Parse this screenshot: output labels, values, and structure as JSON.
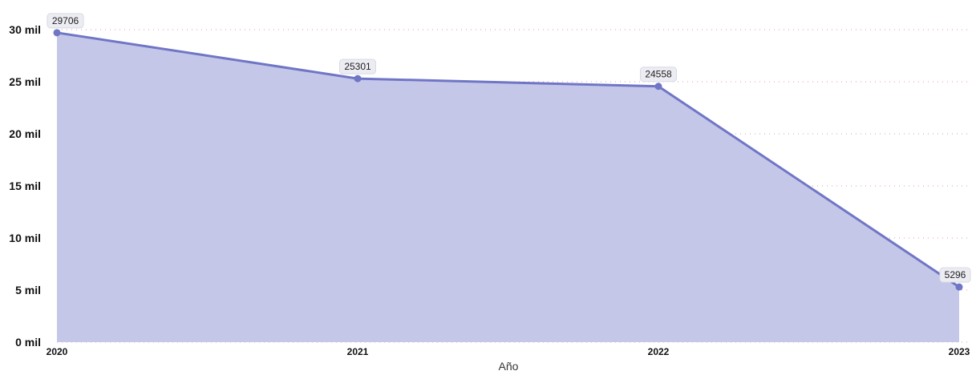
{
  "chart_data": {
    "type": "area",
    "title": "",
    "xlabel": "Año",
    "ylabel": "",
    "categories": [
      "2020",
      "2021",
      "2022",
      "2023"
    ],
    "values": [
      29706,
      25301,
      24558,
      5296
    ],
    "data_labels": [
      "29706",
      "25301",
      "24558",
      "5296"
    ],
    "ylim": [
      0,
      30000
    ],
    "yticks": [
      0,
      5000,
      10000,
      15000,
      20000,
      25000,
      30000
    ],
    "ytick_labels": [
      "0 mil",
      "5 mil",
      "10 mil",
      "15 mil",
      "20 mil",
      "25 mil",
      "30 mil"
    ],
    "grid": true,
    "legend": "none",
    "colors": {
      "line": "#6f76c6",
      "fill": "#c5c7e8",
      "grid": "#d98a9a",
      "label_bg": "#ececf3"
    }
  }
}
